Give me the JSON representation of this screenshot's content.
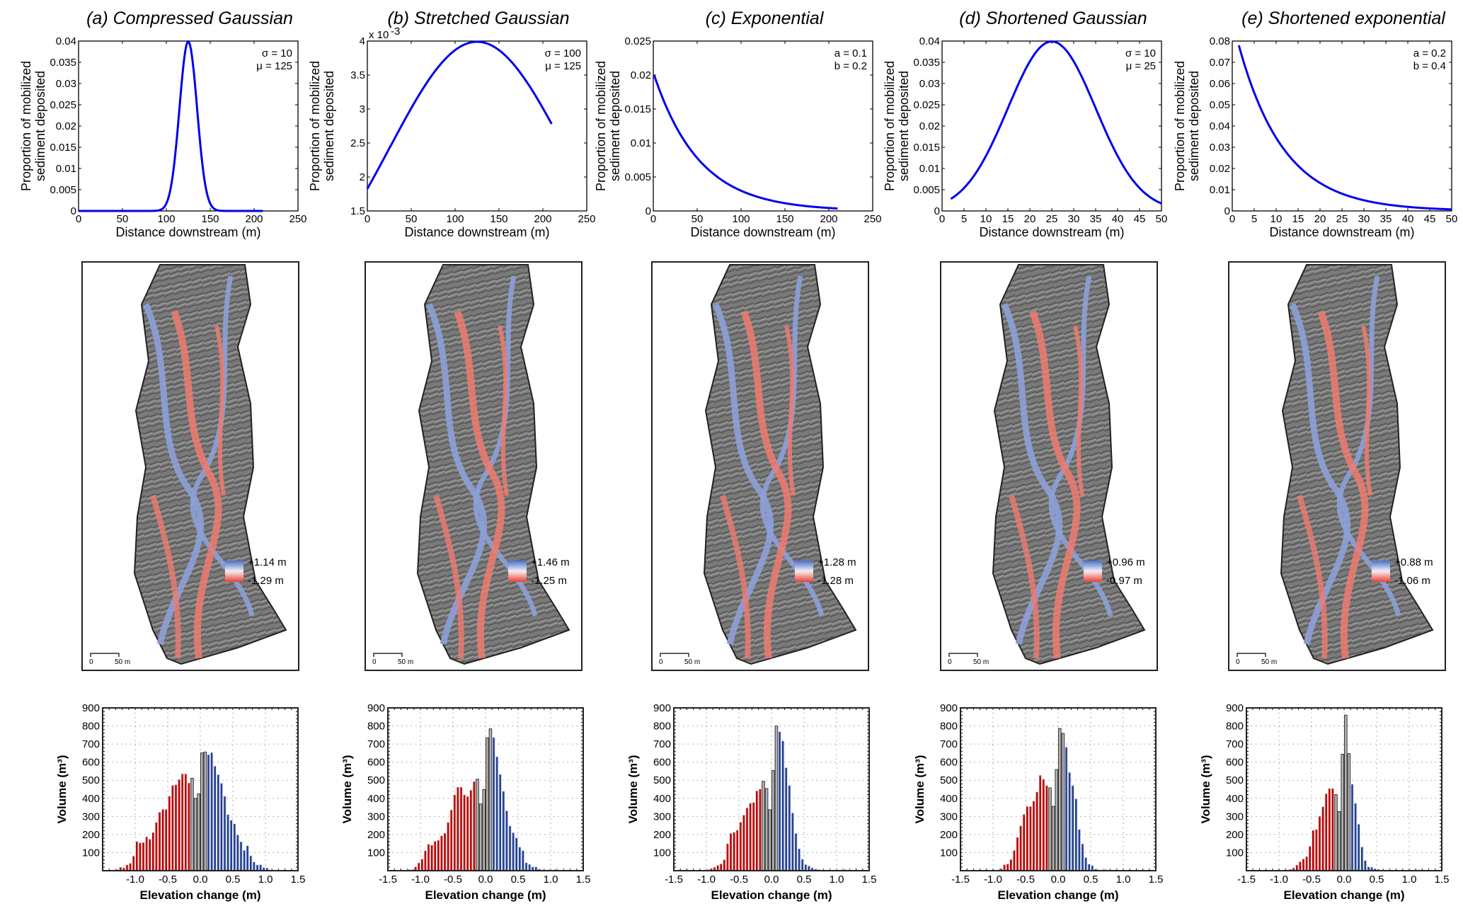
{
  "colors": {
    "line": "#0000ee",
    "erosion": "#c00000",
    "deposition": "#1f3f99",
    "neutral": "#b5b5b5",
    "map_gray": "#6b6b6b",
    "map_blue": "#8da0d8",
    "map_red": "#ef7b70"
  },
  "chart_data": [
    {
      "panel": "a",
      "type": "line",
      "title": "(a) Compressed Gaussian",
      "xlabel": "Distance downstream (m)",
      "ylabel": [
        "Proportion of mobilized",
        "sediment deposited"
      ],
      "function": "gaussian",
      "params_text": [
        "σ = 10",
        "μ = 125"
      ],
      "sigma": 10,
      "mu": 125,
      "x_range": [
        0,
        210
      ],
      "xlim": [
        0,
        250
      ],
      "ylim": [
        0,
        0.04
      ],
      "xticks": [
        "0",
        "50",
        "100",
        "150",
        "200",
        "250"
      ],
      "yticks": [
        "0",
        "0.005",
        "0.01",
        "0.015",
        "0.02",
        "0.025",
        "0.03",
        "0.035",
        "0.04"
      ],
      "yexponent": "",
      "map": {
        "legend_max": "+1.14 m",
        "legend_min": "-1.29 m",
        "scale_start": "0",
        "scale_end": "50 m"
      },
      "histogram": {
        "type": "bar",
        "xlabel": "Elevation change (m)",
        "ylabel": "Volume  (m³)",
        "xlim": [
          -1.5,
          1.5
        ],
        "ylim": [
          0,
          900
        ],
        "xticks": [
          "",
          "-1.0",
          "-0.5",
          "0.0",
          "0.5",
          "1.0",
          "1.5"
        ],
        "yticks": [
          "100",
          "200",
          "300",
          "400",
          "500",
          "600",
          "700",
          "800",
          "900"
        ],
        "bin_width": 0.05,
        "bin_start": -1.35,
        "neutral_range": [
          -0.15,
          0.05
        ],
        "values": [
          5,
          8,
          20,
          17,
          33,
          42,
          82,
          162,
          155,
          157,
          188,
          175,
          212,
          268,
          324,
          340,
          340,
          413,
          472,
          476,
          505,
          536,
          536,
          486,
          511,
          400,
          425,
          651,
          656,
          642,
          654,
          579,
          532,
          484,
          412,
          311,
          280,
          260,
          199,
          161,
          113,
          139,
          83,
          49,
          33,
          34,
          18,
          16,
          4
        ]
      }
    },
    {
      "panel": "b",
      "type": "line",
      "title": "(b) Stretched Gaussian",
      "xlabel": "Distance downstream (m)",
      "ylabel": [
        "Proportion of mobilized",
        "sediment deposited"
      ],
      "function": "gaussian",
      "params_text": [
        "σ = 100",
        "μ = 125"
      ],
      "sigma": 100,
      "mu": 125,
      "x_range": [
        0,
        210
      ],
      "xlim": [
        0,
        250
      ],
      "ylim": [
        1.5,
        4
      ],
      "yscale": 1000,
      "xticks": [
        "0",
        "50",
        "100",
        "150",
        "200",
        "250"
      ],
      "yticks": [
        "1.5",
        "2",
        "2.5",
        "3",
        "3.5",
        "4"
      ],
      "yexponent": "x 10",
      "yexponent_power": "-3",
      "map": {
        "legend_max": "+1.46 m",
        "legend_min": "-1.25 m",
        "scale_start": "0",
        "scale_end": "50 m"
      },
      "histogram": {
        "type": "bar",
        "xlabel": "Elevation change (m)",
        "ylabel": "Volume  (m³)",
        "xlim": [
          -1.5,
          1.5
        ],
        "ylim": [
          0,
          900
        ],
        "xticks": [
          "-1.5",
          "-1.0",
          "-0.5",
          "0.0",
          "0.5",
          "1.0",
          "1.5"
        ],
        "yticks": [
          "100",
          "200",
          "300",
          "400",
          "500",
          "600",
          "700",
          "800",
          "900"
        ],
        "bin_width": 0.05,
        "bin_start": -1.25,
        "neutral_range": [
          -0.15,
          0.05
        ],
        "values": [
          4,
          7,
          7,
          22,
          44,
          65,
          111,
          147,
          142,
          164,
          169,
          194,
          208,
          268,
          337,
          420,
          463,
          463,
          420,
          411,
          446,
          494,
          506,
          369,
          449,
          735,
          784,
          737,
          631,
          533,
          440,
          332,
          248,
          211,
          182,
          131,
          112,
          45,
          36,
          22,
          22,
          10,
          4,
          4,
          7,
          4,
          8,
          4,
          4,
          4,
          4,
          4
        ]
      }
    },
    {
      "panel": "c",
      "type": "line",
      "title": "(c) Exponential",
      "xlabel": "Distance downstream (m)",
      "ylabel": [
        "Proportion of mobilized",
        "sediment deposited"
      ],
      "function": "exponential",
      "params_text": [
        "a = 0.1",
        "b = 0.2"
      ],
      "start_value": 0.02,
      "decay_length": 52,
      "x_range": [
        1,
        210
      ],
      "xlim": [
        0,
        250
      ],
      "ylim": [
        0,
        0.025
      ],
      "xticks": [
        "0",
        "50",
        "100",
        "150",
        "200",
        "250"
      ],
      "yticks": [
        "0",
        "0.005",
        "0.01",
        "0.015",
        "0.02",
        "0.025"
      ],
      "yexponent": "",
      "map": {
        "legend_max": "+1.28 m",
        "legend_min": "-1.28 m",
        "scale_start": "0",
        "scale_end": "50 m"
      },
      "histogram": {
        "type": "bar",
        "xlabel": "Elevation change (m)",
        "ylabel": "Volume  (m³)",
        "xlim": [
          -1.5,
          1.5
        ],
        "ylim": [
          0,
          900
        ],
        "xticks": [
          "-1.5",
          "-1.0",
          "-0.5",
          "0.0",
          "0.5",
          "1.0",
          "1.5"
        ],
        "yticks": [
          "100",
          "200",
          "300",
          "400",
          "500",
          "600",
          "700",
          "800",
          "900"
        ],
        "bin_width": 0.05,
        "bin_start": -1.05,
        "neutral_range": [
          -0.15,
          0.05
        ],
        "values": [
          4,
          7,
          13,
          20,
          30,
          39,
          62,
          150,
          207,
          213,
          225,
          269,
          308,
          348,
          374,
          378,
          442,
          452,
          494,
          454,
          337,
          554,
          800,
          769,
          718,
          570,
          472,
          320,
          207,
          122,
          64,
          35,
          27,
          17,
          10,
          7,
          4,
          4,
          4,
          4,
          5,
          4,
          4,
          7,
          4,
          4
        ]
      }
    },
    {
      "panel": "d",
      "type": "line",
      "title": "(d) Shortened Gaussian",
      "xlabel": "Distance downstream (m)",
      "ylabel": [
        "Proportion of mobilized",
        "sediment deposited"
      ],
      "function": "gaussian",
      "params_text": [
        "σ = 10",
        "μ = 25"
      ],
      "sigma": 10,
      "mu": 25,
      "x_range": [
        2,
        50
      ],
      "xlim": [
        0,
        50
      ],
      "ylim": [
        0,
        0.04
      ],
      "xticks": [
        "0",
        "5",
        "10",
        "15",
        "20",
        "25",
        "30",
        "35",
        "40",
        "45",
        "50"
      ],
      "yticks": [
        "0",
        "0.005",
        "0.01",
        "0.015",
        "0.02",
        "0.025",
        "0.03",
        "0.035",
        "0.04"
      ],
      "yexponent": "",
      "map": {
        "legend_max": "+0.96 m",
        "legend_min": "-0.97 m",
        "scale_start": "0",
        "scale_end": "50 m"
      },
      "histogram": {
        "type": "bar",
        "xlabel": "Elevation change (m)",
        "ylabel": "Volume  (m³)",
        "xlim": [
          -1.5,
          1.5
        ],
        "ylim": [
          0,
          900
        ],
        "xticks": [
          "-1.5",
          "-1.0",
          "-0.5",
          "0.0",
          "0.5",
          "1.0",
          "1.5"
        ],
        "yticks": [
          "100",
          "200",
          "300",
          "400",
          "500",
          "600",
          "700",
          "800",
          "900"
        ],
        "bin_width": 0.05,
        "bin_start": -0.9,
        "neutral_range": [
          -0.15,
          0.05
        ],
        "values": [
          12,
          34,
          38,
          63,
          113,
          185,
          249,
          312,
          356,
          356,
          386,
          436,
          528,
          507,
          471,
          458,
          356,
          559,
          786,
          759,
          684,
          544,
          471,
          398,
          229,
          149,
          73,
          37,
          29,
          10,
          5,
          5,
          7,
          4,
          4,
          4
        ]
      }
    },
    {
      "panel": "e",
      "type": "line",
      "title": "(e) Shortened exponential",
      "xlabel": "Distance downstream (m)",
      "ylabel": [
        "Proportion of mobilized",
        "sediment deposited"
      ],
      "function": "exponential",
      "params_text": [
        "a = 0.2",
        "b = 0.4"
      ],
      "start_value": 0.078,
      "decay_length": 10.4,
      "x_range": [
        1.5,
        50
      ],
      "xlim": [
        0,
        50
      ],
      "ylim": [
        0,
        0.08
      ],
      "xticks": [
        "0",
        "5",
        "10",
        "15",
        "20",
        "25",
        "30",
        "35",
        "40",
        "45",
        "50"
      ],
      "yticks": [
        "0",
        "0.01",
        "0.02",
        "0.03",
        "0.04",
        "0.05",
        "0.06",
        "0.07",
        "0.08"
      ],
      "yexponent": "",
      "map": {
        "legend_max": "+0.88 m",
        "legend_min": "-1.06 m",
        "scale_start": "0",
        "scale_end": "50 m"
      },
      "histogram": {
        "type": "bar",
        "xlabel": "Elevation change (m)",
        "ylabel": "Volume  (m³)",
        "xlim": [
          -1.5,
          1.5
        ],
        "ylim": [
          0,
          900
        ],
        "xticks": [
          "-1.5",
          "-1.0",
          "-0.5",
          "0.0",
          "0.5",
          "1.0",
          "1.5"
        ],
        "yticks": [
          "100",
          "200",
          "300",
          "400",
          "500",
          "600",
          "700",
          "800",
          "900"
        ],
        "bin_width": 0.05,
        "bin_start": -0.85,
        "neutral_range": [
          -0.15,
          0.05
        ],
        "values": [
          9,
          16,
          32,
          50,
          66,
          79,
          136,
          224,
          229,
          302,
          354,
          426,
          455,
          455,
          421,
          327,
          644,
          860,
          647,
          479,
          373,
          258,
          132,
          57,
          22,
          20,
          12,
          9,
          4,
          3,
          3,
          4
        ]
      }
    }
  ]
}
